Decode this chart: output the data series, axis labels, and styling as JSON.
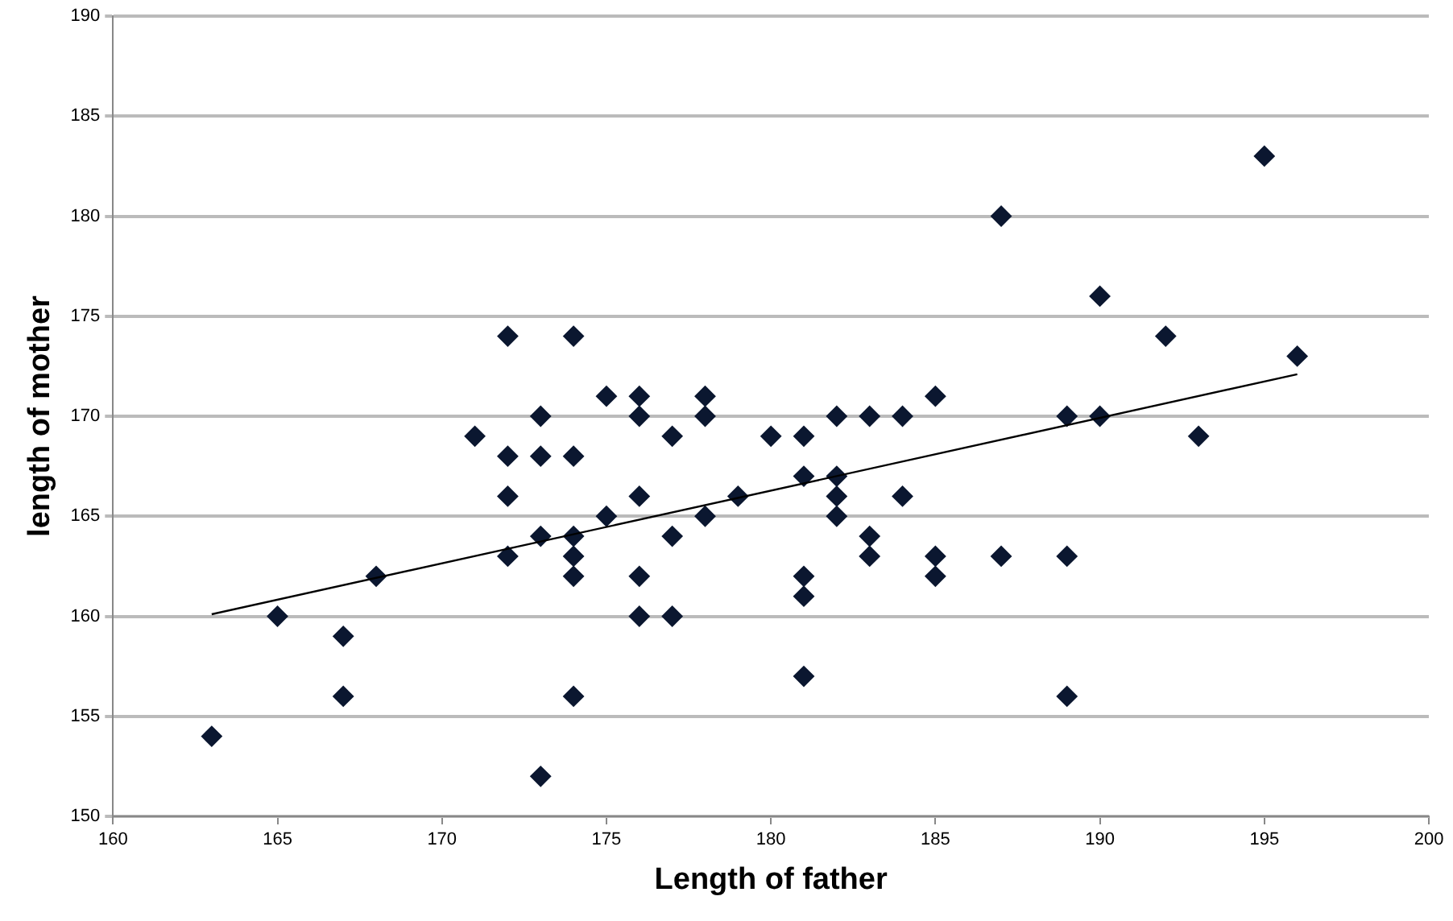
{
  "chart_data": {
    "type": "scatter",
    "xlabel": "Length of father",
    "ylabel": "length of mother",
    "xlim": [
      160,
      200
    ],
    "xticks": [
      160,
      165,
      170,
      175,
      180,
      185,
      190,
      195,
      200
    ],
    "ylim": [
      150,
      190
    ],
    "yticks": [
      150,
      155,
      160,
      165,
      170,
      175,
      180,
      185,
      190
    ],
    "grid": "y",
    "legend": false,
    "marker": "diamond",
    "series": [
      {
        "color": "#0b1730",
        "x": [
          163,
          165,
          167,
          167,
          168,
          171,
          172,
          172,
          172,
          172,
          173,
          173,
          173,
          173,
          174,
          174,
          174,
          174,
          174,
          174,
          175,
          175,
          176,
          176,
          176,
          176,
          176,
          177,
          177,
          177,
          178,
          178,
          178,
          179,
          180,
          181,
          181,
          181,
          181,
          181,
          182,
          182,
          182,
          182,
          183,
          183,
          183,
          184,
          184,
          185,
          185,
          185,
          187,
          187,
          189,
          189,
          189,
          190,
          190,
          192,
          193,
          195,
          196
        ],
        "values": [
          154,
          160,
          159,
          156,
          162,
          169,
          174,
          168,
          166,
          163,
          170,
          168,
          164,
          152,
          174,
          168,
          164,
          163,
          162,
          156,
          171,
          165,
          171,
          170,
          166,
          162,
          160,
          169,
          164,
          160,
          171,
          170,
          165,
          166,
          169,
          169,
          167,
          162,
          161,
          157,
          170,
          167,
          166,
          165,
          170,
          164,
          163,
          170,
          166,
          171,
          163,
          162,
          180,
          163,
          170,
          163,
          156,
          176,
          170,
          174,
          169,
          183,
          173
        ]
      },
      {
        "type": "line",
        "color": "#000000",
        "marker": "none",
        "x": [
          163,
          196
        ],
        "values": [
          160.1,
          172.1
        ]
      }
    ]
  }
}
